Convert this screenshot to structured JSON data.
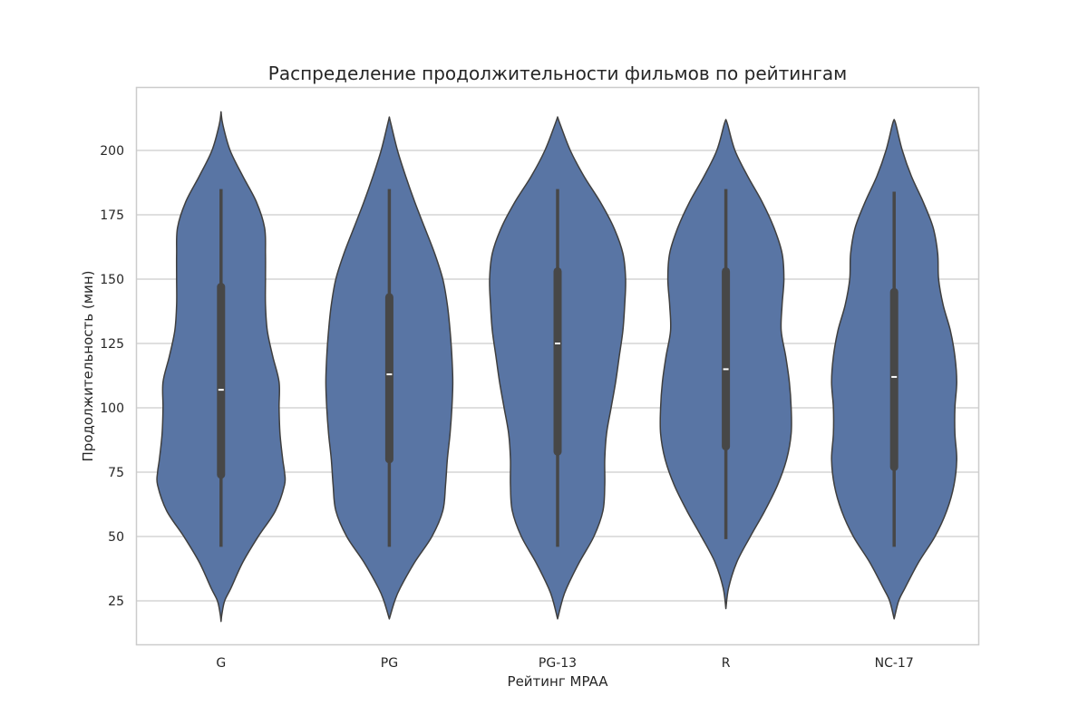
{
  "chart_data": {
    "type": "violin",
    "title": "Распределение продолжительности фильмов по рейтингам",
    "xlabel": "Рейтинг MPAA",
    "ylabel": "Продолжительность (мин)",
    "categories": [
      "G",
      "PG",
      "PG-13",
      "R",
      "NC-17"
    ],
    "y_ticks": [
      25,
      50,
      75,
      100,
      125,
      150,
      175,
      200
    ],
    "ylim": [
      12,
      225
    ],
    "grid": "horizontal",
    "colors": {
      "fill": "#5975A4",
      "edge": "#3F3F3F",
      "box": "#474747",
      "median": "#FFFFFF",
      "grid": "#CCCCCC",
      "frame": "#CCCCCC"
    },
    "violins": [
      {
        "category": "G",
        "stats": {
          "min": 46,
          "q1": 74,
          "median": 107,
          "q3": 147,
          "max": 185,
          "min_kde": 17,
          "max_kde": 215
        },
        "halfwidth_profile": [
          [
            17,
            0
          ],
          [
            20,
            1
          ],
          [
            25,
            4
          ],
          [
            30,
            11
          ],
          [
            40,
            24
          ],
          [
            50,
            41
          ],
          [
            60,
            60
          ],
          [
            70,
            70
          ],
          [
            75,
            70
          ],
          [
            80,
            68
          ],
          [
            90,
            65
          ],
          [
            100,
            64
          ],
          [
            110,
            64
          ],
          [
            120,
            57
          ],
          [
            130,
            51
          ],
          [
            140,
            49
          ],
          [
            150,
            49
          ],
          [
            160,
            49
          ],
          [
            170,
            48
          ],
          [
            180,
            39
          ],
          [
            190,
            24
          ],
          [
            200,
            10
          ],
          [
            210,
            2
          ],
          [
            215,
            0
          ]
        ]
      },
      {
        "category": "PG",
        "stats": {
          "min": 46,
          "q1": 80,
          "median": 113,
          "q3": 143,
          "max": 185,
          "min_kde": 18,
          "max_kde": 213
        },
        "halfwidth_profile": [
          [
            18,
            0
          ],
          [
            25,
            6
          ],
          [
            30,
            12
          ],
          [
            40,
            28
          ],
          [
            50,
            47
          ],
          [
            60,
            59
          ],
          [
            70,
            62
          ],
          [
            80,
            64
          ],
          [
            90,
            67
          ],
          [
            100,
            69
          ],
          [
            110,
            70
          ],
          [
            120,
            69
          ],
          [
            130,
            67
          ],
          [
            140,
            64
          ],
          [
            150,
            59
          ],
          [
            160,
            50
          ],
          [
            170,
            39
          ],
          [
            180,
            28
          ],
          [
            190,
            18
          ],
          [
            200,
            9
          ],
          [
            210,
            2
          ],
          [
            213,
            0
          ]
        ]
      },
      {
        "category": "PG-13",
        "stats": {
          "min": 46,
          "q1": 83,
          "median": 125,
          "q3": 153,
          "max": 185,
          "min_kde": 18,
          "max_kde": 213
        },
        "halfwidth_profile": [
          [
            18,
            0
          ],
          [
            25,
            5
          ],
          [
            30,
            10
          ],
          [
            40,
            24
          ],
          [
            50,
            40
          ],
          [
            60,
            50
          ],
          [
            70,
            52
          ],
          [
            80,
            52
          ],
          [
            90,
            54
          ],
          [
            100,
            59
          ],
          [
            110,
            64
          ],
          [
            120,
            68
          ],
          [
            130,
            72
          ],
          [
            140,
            74
          ],
          [
            150,
            75
          ],
          [
            160,
            72
          ],
          [
            170,
            62
          ],
          [
            180,
            47
          ],
          [
            190,
            29
          ],
          [
            200,
            14
          ],
          [
            210,
            3
          ],
          [
            213,
            0
          ]
        ]
      },
      {
        "category": "R",
        "stats": {
          "min": 49,
          "q1": 85,
          "median": 115,
          "q3": 153,
          "max": 185,
          "min_kde": 22,
          "max_kde": 212
        },
        "halfwidth_profile": [
          [
            22,
            0
          ],
          [
            30,
            3
          ],
          [
            40,
            12
          ],
          [
            50,
            27
          ],
          [
            60,
            43
          ],
          [
            70,
            57
          ],
          [
            80,
            67
          ],
          [
            90,
            72
          ],
          [
            100,
            72
          ],
          [
            110,
            70
          ],
          [
            120,
            66
          ],
          [
            130,
            61
          ],
          [
            140,
            62
          ],
          [
            150,
            64
          ],
          [
            160,
            62
          ],
          [
            170,
            53
          ],
          [
            180,
            40
          ],
          [
            190,
            24
          ],
          [
            200,
            10
          ],
          [
            210,
            2
          ],
          [
            212,
            0
          ]
        ]
      },
      {
        "category": "NC-17",
        "stats": {
          "min": 46,
          "q1": 77,
          "median": 112,
          "q3": 145,
          "max": 184,
          "min_kde": 18,
          "max_kde": 212
        },
        "halfwidth_profile": [
          [
            18,
            0
          ],
          [
            25,
            5
          ],
          [
            30,
            12
          ],
          [
            40,
            27
          ],
          [
            50,
            45
          ],
          [
            60,
            58
          ],
          [
            70,
            66
          ],
          [
            80,
            69
          ],
          [
            90,
            67
          ],
          [
            100,
            67
          ],
          [
            110,
            69
          ],
          [
            120,
            67
          ],
          [
            130,
            62
          ],
          [
            140,
            54
          ],
          [
            150,
            49
          ],
          [
            160,
            48
          ],
          [
            170,
            43
          ],
          [
            180,
            32
          ],
          [
            190,
            19
          ],
          [
            200,
            9
          ],
          [
            210,
            2
          ],
          [
            212,
            0
          ]
        ]
      }
    ]
  }
}
